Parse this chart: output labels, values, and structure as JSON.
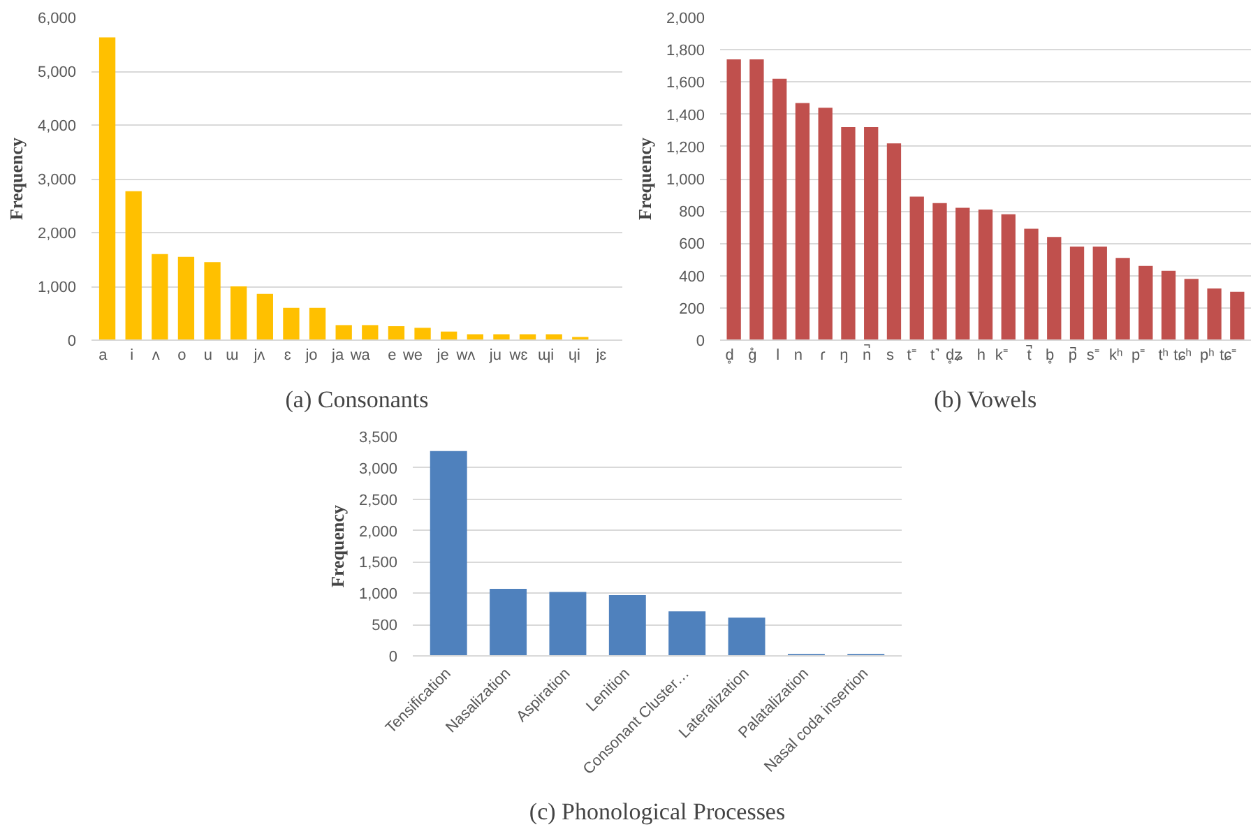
{
  "chart_data": [
    {
      "type": "bar",
      "title": "(a) Consonants",
      "ylabel": "Frequency",
      "categories": [
        "a",
        "i",
        "ʌ",
        "o",
        "u",
        "ɯ",
        "jʌ",
        "ɛ",
        "jo",
        "ja",
        "wa",
        "e",
        "we",
        "je",
        "wʌ",
        "ju",
        "wɛ",
        "ɰi",
        "ɥi",
        "jɛ"
      ],
      "values": [
        5630,
        2770,
        1600,
        1550,
        1450,
        1000,
        860,
        600,
        600,
        280,
        280,
        260,
        230,
        160,
        110,
        110,
        110,
        110,
        60,
        0
      ],
      "color": "#ffc000",
      "ylim": [
        0,
        6000
      ],
      "yticks": [
        {
          "value": 0,
          "label": "0"
        },
        {
          "value": 1000,
          "label": "1,000"
        },
        {
          "value": 2000,
          "label": "2,000"
        },
        {
          "value": 3000,
          "label": "3,000"
        },
        {
          "value": 4000,
          "label": "4,000"
        },
        {
          "value": 5000,
          "label": "5,000"
        },
        {
          "value": 6000,
          "label": "6,000"
        }
      ],
      "grid": "y"
    },
    {
      "type": "bar",
      "title": "(b) Vowels",
      "ylabel": "Frequency",
      "categories": [
        "d̥",
        "g̊",
        "l",
        "n",
        "ɾ",
        "ŋ",
        "n̚",
        "s",
        "t⁼",
        "t˺",
        "d̥ʑ",
        "h",
        "k⁼",
        "t̚",
        "b̥",
        "p̚",
        "s⁼",
        "kʰ",
        "p⁼",
        "tʰ",
        "tɕʰ",
        "pʰ",
        "tɕ⁼"
      ],
      "values": [
        1740,
        1740,
        1620,
        1470,
        1440,
        1320,
        1320,
        1220,
        890,
        850,
        820,
        810,
        780,
        690,
        640,
        580,
        580,
        510,
        460,
        430,
        380,
        320,
        300
      ],
      "color": "#c0504d",
      "ylim": [
        0,
        2000
      ],
      "yticks": [
        {
          "value": 0,
          "label": "0"
        },
        {
          "value": 200,
          "label": "200"
        },
        {
          "value": 400,
          "label": "400"
        },
        {
          "value": 600,
          "label": "600"
        },
        {
          "value": 800,
          "label": "800"
        },
        {
          "value": 1000,
          "label": "1,000"
        },
        {
          "value": 1200,
          "label": "1,200"
        },
        {
          "value": 1400,
          "label": "1,400"
        },
        {
          "value": 1600,
          "label": "1,600"
        },
        {
          "value": 1800,
          "label": "1,800"
        },
        {
          "value": 2000,
          "label": "2,000"
        }
      ],
      "grid": "y"
    },
    {
      "type": "bar",
      "title": "(c) Phonological Processes",
      "ylabel": "Frequency",
      "categories": [
        "Tensification",
        "Nasalization",
        "Aspiration",
        "Lenition",
        "Consonant Cluster…",
        "Lateralization",
        "Palatalization",
        "Nasal coda insertion"
      ],
      "values": [
        3270,
        1070,
        1020,
        970,
        710,
        610,
        30,
        30
      ],
      "color": "#4f81bd",
      "ylim": [
        0,
        3500
      ],
      "yticks": [
        {
          "value": 0,
          "label": "0"
        },
        {
          "value": 500,
          "label": "500"
        },
        {
          "value": 1000,
          "label": "1,000"
        },
        {
          "value": 1500,
          "label": "1,500"
        },
        {
          "value": 2000,
          "label": "2,000"
        },
        {
          "value": 2500,
          "label": "2,500"
        },
        {
          "value": 3000,
          "label": "3,000"
        },
        {
          "value": 3500,
          "label": "3,500"
        }
      ],
      "grid": "y"
    }
  ]
}
